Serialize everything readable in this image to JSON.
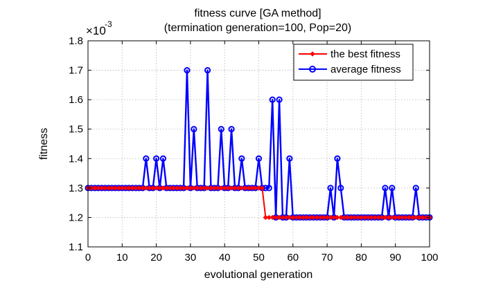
{
  "chart_data": {
    "type": "line",
    "title": "fitness curve [GA method]",
    "subtitle": "(termination generation=100, Pop=20)",
    "xlabel": "evolutional generation",
    "ylabel": "fitness",
    "y_scale_multiplier_label": "×10",
    "y_scale_exponent": "-3",
    "xlim": [
      0,
      100
    ],
    "ylim": [
      1.1,
      1.8
    ],
    "xticks": [
      "0",
      "10",
      "20",
      "30",
      "40",
      "50",
      "60",
      "70",
      "80",
      "90",
      "100"
    ],
    "yticks": [
      "1.1",
      "1.2",
      "1.3",
      "1.4",
      "1.5",
      "1.6",
      "1.7",
      "1.8"
    ],
    "grid": true,
    "legend_position": "top-right",
    "x": [
      0,
      1,
      2,
      3,
      4,
      5,
      6,
      7,
      8,
      9,
      10,
      11,
      12,
      13,
      14,
      15,
      16,
      17,
      18,
      19,
      20,
      21,
      22,
      23,
      24,
      25,
      26,
      27,
      28,
      29,
      30,
      31,
      32,
      33,
      34,
      35,
      36,
      37,
      38,
      39,
      40,
      41,
      42,
      43,
      44,
      45,
      46,
      47,
      48,
      49,
      50,
      51,
      52,
      53,
      54,
      55,
      56,
      57,
      58,
      59,
      60,
      61,
      62,
      63,
      64,
      65,
      66,
      67,
      68,
      69,
      70,
      71,
      72,
      73,
      74,
      75,
      76,
      77,
      78,
      79,
      80,
      81,
      82,
      83,
      84,
      85,
      86,
      87,
      88,
      89,
      90,
      91,
      92,
      93,
      94,
      95,
      96,
      97,
      98,
      99,
      100
    ],
    "series": [
      {
        "name": "the best fitness",
        "color": "#ff0000",
        "values": [
          1.3,
          1.3,
          1.3,
          1.3,
          1.3,
          1.3,
          1.3,
          1.3,
          1.3,
          1.3,
          1.3,
          1.3,
          1.3,
          1.3,
          1.3,
          1.3,
          1.3,
          1.3,
          1.3,
          1.3,
          1.3,
          1.3,
          1.3,
          1.3,
          1.3,
          1.3,
          1.3,
          1.3,
          1.3,
          1.3,
          1.3,
          1.3,
          1.3,
          1.3,
          1.3,
          1.3,
          1.3,
          1.3,
          1.3,
          1.3,
          1.3,
          1.3,
          1.3,
          1.3,
          1.3,
          1.3,
          1.3,
          1.3,
          1.3,
          1.3,
          1.3,
          1.3,
          1.2,
          1.2,
          1.2,
          1.2,
          1.2,
          1.2,
          1.2,
          1.2,
          1.2,
          1.2,
          1.2,
          1.2,
          1.2,
          1.2,
          1.2,
          1.2,
          1.2,
          1.2,
          1.2,
          1.2,
          1.2,
          1.2,
          1.2,
          1.2,
          1.2,
          1.2,
          1.2,
          1.2,
          1.2,
          1.2,
          1.2,
          1.2,
          1.2,
          1.2,
          1.2,
          1.2,
          1.2,
          1.2,
          1.2,
          1.2,
          1.2,
          1.2,
          1.2,
          1.2,
          1.2,
          1.2,
          1.2,
          1.2,
          1.2
        ]
      },
      {
        "name": "average fitness",
        "color": "#0000ff",
        "values": [
          1.3,
          1.3,
          1.3,
          1.3,
          1.3,
          1.3,
          1.3,
          1.3,
          1.3,
          1.3,
          1.3,
          1.3,
          1.3,
          1.3,
          1.3,
          1.3,
          1.3,
          1.4,
          1.3,
          1.3,
          1.4,
          1.3,
          1.4,
          1.3,
          1.3,
          1.3,
          1.3,
          1.3,
          1.3,
          1.7,
          1.3,
          1.5,
          1.3,
          1.3,
          1.3,
          1.7,
          1.3,
          1.3,
          1.3,
          1.5,
          1.3,
          1.3,
          1.5,
          1.3,
          1.3,
          1.4,
          1.3,
          1.3,
          1.3,
          1.3,
          1.4,
          1.3,
          1.3,
          1.3,
          1.6,
          1.2,
          1.6,
          1.2,
          1.2,
          1.4,
          1.2,
          1.2,
          1.2,
          1.2,
          1.2,
          1.2,
          1.2,
          1.2,
          1.2,
          1.2,
          1.2,
          1.3,
          1.2,
          1.4,
          1.3,
          1.2,
          1.2,
          1.2,
          1.2,
          1.2,
          1.2,
          1.2,
          1.2,
          1.2,
          1.2,
          1.2,
          1.2,
          1.3,
          1.2,
          1.3,
          1.2,
          1.2,
          1.2,
          1.2,
          1.2,
          1.2,
          1.3,
          1.2,
          1.2,
          1.2,
          1.2
        ]
      }
    ]
  }
}
